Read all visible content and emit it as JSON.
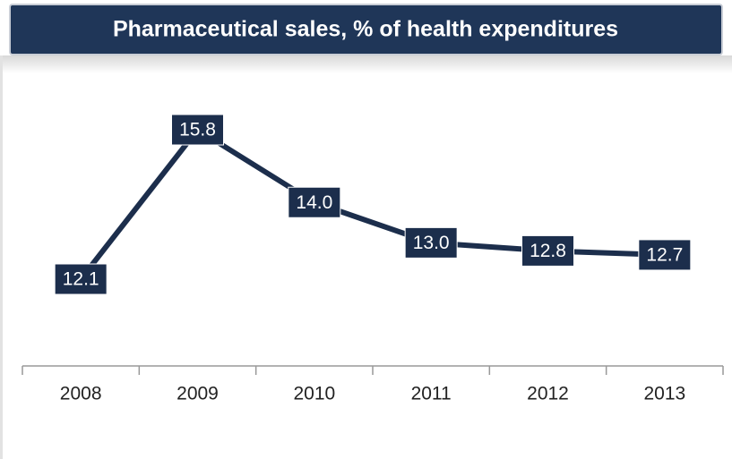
{
  "chart_data": {
    "type": "line",
    "title": "Pharmaceutical sales, % of health expenditures",
    "categories": [
      "2008",
      "2009",
      "2010",
      "2011",
      "2012",
      "2013"
    ],
    "values": [
      12.1,
      15.8,
      14.0,
      13.0,
      12.8,
      12.7
    ],
    "value_labels": [
      "12.1",
      "15.8",
      "14.0",
      "13.0",
      "12.8",
      "12.7"
    ],
    "color": "#1c2e4c"
  }
}
